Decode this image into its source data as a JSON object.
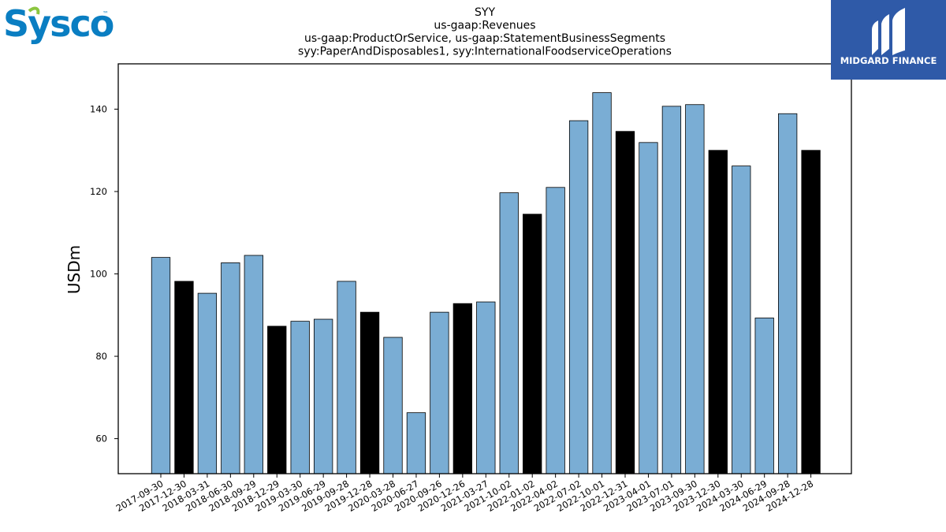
{
  "logos": {
    "left_text": "Sysco",
    "left_tm": "™",
    "left_color": "#0a7ec2",
    "left_accent": "#8cc63f",
    "right_text": "MIDGARD FINANCE",
    "right_bg": "#2f5aa8"
  },
  "chart_data": {
    "type": "bar",
    "title_lines": [
      "SYY",
      "us-gaap:Revenues",
      "us-gaap:ProductOrService, us-gaap:StatementBusinessSegments",
      "syy:PaperAndDisposables1, syy:InternationalFoodserviceOperations"
    ],
    "xlabel": "",
    "ylabel": "USDm",
    "ylim": [
      51.5,
      151
    ],
    "yticks": [
      60,
      80,
      100,
      120,
      140
    ],
    "grid": false,
    "categories": [
      "2017-09-30",
      "2017-12-30",
      "2018-03-31",
      "2018-06-30",
      "2018-09-29",
      "2018-12-29",
      "2019-03-30",
      "2019-06-29",
      "2019-09-28",
      "2019-12-28",
      "2020-03-28",
      "2020-06-27",
      "2020-09-26",
      "2020-12-26",
      "2021-03-27",
      "2021-10-02",
      "2022-01-02",
      "2022-04-02",
      "2022-07-02",
      "2022-10-01",
      "2022-12-31",
      "2023-04-01",
      "2023-07-01",
      "2023-09-30",
      "2023-12-30",
      "2024-03-30",
      "2024-06-29",
      "2024-09-28",
      "2024-12-28"
    ],
    "values": [
      104.0,
      98.2,
      95.3,
      102.7,
      104.5,
      87.3,
      88.5,
      89.0,
      98.2,
      90.7,
      84.6,
      66.3,
      90.7,
      92.8,
      93.2,
      119.7,
      114.5,
      121.0,
      137.2,
      144.0,
      134.6,
      131.9,
      140.7,
      141.1,
      130.0,
      126.2,
      89.3,
      138.9,
      130.0
    ],
    "highlight": [
      false,
      true,
      false,
      false,
      false,
      true,
      false,
      false,
      false,
      true,
      false,
      false,
      false,
      true,
      false,
      false,
      true,
      false,
      false,
      false,
      true,
      false,
      false,
      false,
      true,
      false,
      false,
      false,
      true
    ],
    "colors": {
      "normal": "#7aadd4",
      "highlight": "#000000",
      "edge": "#000000"
    }
  }
}
